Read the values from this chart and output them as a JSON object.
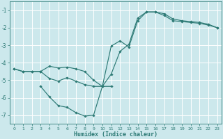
{
  "xlabel": "Humidex (Indice chaleur)",
  "bg_color": "#cce8ec",
  "grid_color": "#ffffff",
  "line_color": "#2d7a75",
  "xlim": [
    -0.5,
    23.5
  ],
  "ylim": [
    -7.5,
    -0.5
  ],
  "xticks": [
    0,
    1,
    2,
    3,
    4,
    5,
    6,
    7,
    8,
    9,
    10,
    11,
    12,
    13,
    14,
    15,
    16,
    17,
    18,
    19,
    20,
    21,
    22,
    23
  ],
  "yticks": [
    -7,
    -6,
    -5,
    -4,
    -3,
    -2,
    -1
  ],
  "lines": [
    {
      "x": [
        0,
        1,
        2,
        3,
        4,
        5,
        6,
        7,
        8,
        9,
        10,
        11,
        12,
        13,
        14,
        15,
        16,
        17,
        18,
        19,
        20,
        21,
        22,
        23
      ],
      "y": [
        -4.35,
        -4.5,
        -4.5,
        -4.5,
        -4.2,
        -4.3,
        -4.25,
        -4.35,
        -4.5,
        -5.0,
        -5.35,
        -3.05,
        -2.75,
        -3.1,
        -1.6,
        -1.1,
        -1.1,
        -1.3,
        -1.6,
        -1.65,
        -1.7,
        -1.75,
        -1.85,
        -2.0
      ]
    },
    {
      "x": [
        0,
        1,
        2,
        3,
        4,
        5,
        6,
        7,
        8,
        9,
        10,
        11,
        12,
        13,
        14,
        15,
        16,
        17,
        18,
        19,
        20,
        21,
        22,
        23
      ],
      "y": [
        -4.35,
        -4.5,
        -4.5,
        -4.5,
        -4.9,
        -5.05,
        -4.85,
        -5.05,
        -5.25,
        -5.35,
        -5.35,
        -4.65,
        -3.35,
        -2.95,
        -1.45,
        -1.1,
        -1.1,
        -1.2,
        -1.5,
        -1.6,
        -1.65,
        -1.7,
        -1.8,
        -2.0
      ]
    },
    {
      "x": [
        3,
        4,
        5,
        6,
        7,
        8,
        9,
        10,
        11
      ],
      "y": [
        -5.35,
        -5.95,
        -6.45,
        -6.55,
        -6.85,
        -7.05,
        -7.0,
        -5.35,
        -5.35
      ]
    }
  ]
}
